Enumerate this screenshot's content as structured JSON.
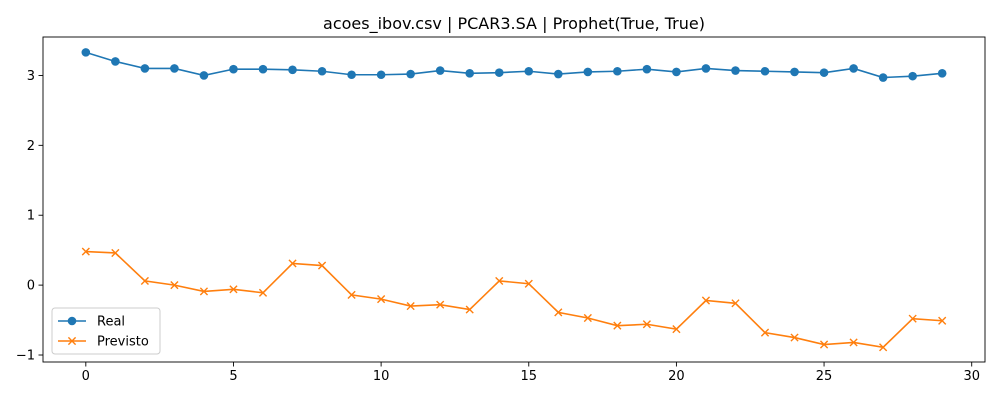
{
  "chart_data": {
    "type": "line",
    "title": "acoes_ibov.csv | PCAR3.SA | Prophet(True, True)",
    "xlabel": "",
    "ylabel": "",
    "xlim": [
      -1.45,
      30.45
    ],
    "ylim": [
      -1.1,
      3.55
    ],
    "xticks": [
      0,
      5,
      10,
      15,
      20,
      25,
      30
    ],
    "yticks": [
      -1,
      0,
      1,
      2,
      3
    ],
    "grid": false,
    "legend_position": "lower-left",
    "x": [
      0,
      1,
      2,
      3,
      4,
      5,
      6,
      7,
      8,
      9,
      10,
      11,
      12,
      13,
      14,
      15,
      16,
      17,
      18,
      19,
      20,
      21,
      22,
      23,
      24,
      25,
      26,
      27,
      28,
      29
    ],
    "series": [
      {
        "name": "Real",
        "color": "#1f77b4",
        "marker": "circle",
        "values": [
          3.33,
          3.2,
          3.1,
          3.1,
          3.0,
          3.09,
          3.09,
          3.08,
          3.06,
          3.01,
          3.01,
          3.02,
          3.07,
          3.03,
          3.04,
          3.06,
          3.02,
          3.05,
          3.06,
          3.09,
          3.05,
          3.1,
          3.07,
          3.06,
          3.05,
          3.04,
          3.1,
          2.97,
          2.99,
          3.03
        ]
      },
      {
        "name": "Previsto",
        "color": "#ff7f0e",
        "marker": "x",
        "values": [
          0.48,
          0.46,
          0.06,
          0.0,
          -0.09,
          -0.06,
          -0.11,
          0.31,
          0.28,
          -0.14,
          -0.2,
          -0.3,
          -0.28,
          -0.35,
          0.06,
          0.02,
          -0.39,
          -0.47,
          -0.58,
          -0.56,
          -0.63,
          -0.22,
          -0.26,
          -0.68,
          -0.75,
          -0.85,
          -0.82,
          -0.89,
          -0.48,
          -0.51
        ]
      }
    ]
  }
}
